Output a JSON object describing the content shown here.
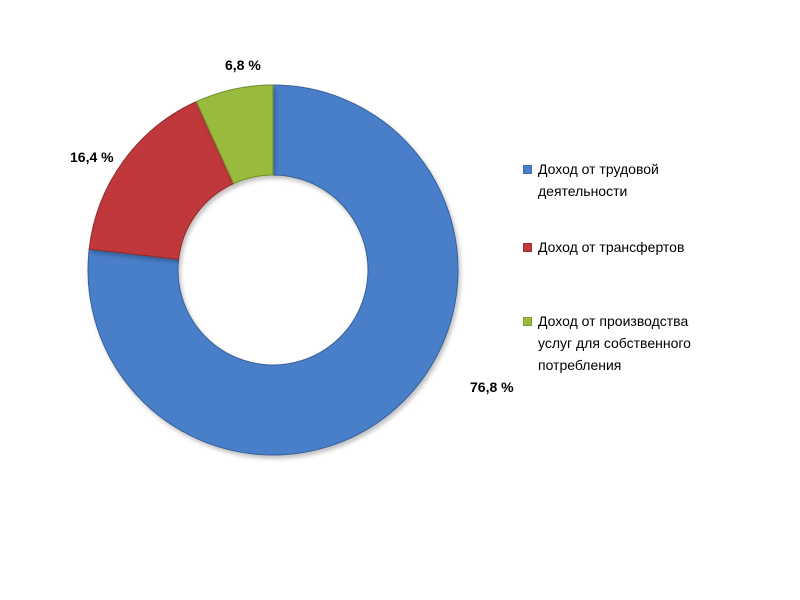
{
  "chart_data": {
    "type": "pie",
    "variant": "donut",
    "title": "",
    "categories": [
      "Доход от трудовой деятельности",
      "Доход от трансфертов",
      "Доход от производства услуг для собственного потребления"
    ],
    "values": [
      76.8,
      16.4,
      6.8
    ],
    "value_labels": [
      "76,8 %",
      "16,4 %",
      "6,8 %"
    ],
    "colors": [
      "#4A7FC9",
      "#C0393A",
      "#98BB3C"
    ],
    "legend": {
      "position": "right",
      "items": [
        {
          "label_lines": [
            "Доход от трудовой",
            "деятельности"
          ],
          "color": "#4A7FC9"
        },
        {
          "label_lines": [
            "Доход от трансфертов"
          ],
          "color": "#C0393A"
        },
        {
          "label_lines": [
            "Доход от производства",
            "услуг для собственного",
            "потребления"
          ],
          "color": "#98BB3C"
        }
      ]
    }
  }
}
